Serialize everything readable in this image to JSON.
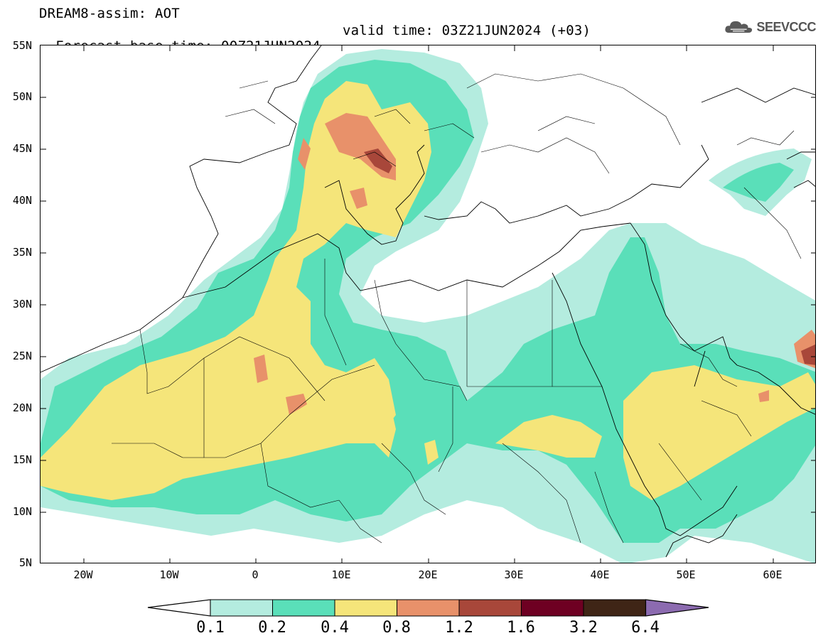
{
  "header": {
    "title_line1": "DREAM8-assim: AOT",
    "base_time": "Forecast base time: 00Z21JUN2024",
    "valid_time": "valid time: 03Z21JUN2024 (+03)"
  },
  "logo": {
    "text": "SEEVCCC",
    "icon": "cloud-icon"
  },
  "map": {
    "lon_range": [
      -25,
      65
    ],
    "lat_range": [
      5,
      55
    ],
    "lat_ticks": [
      "55N",
      "50N",
      "45N",
      "40N",
      "35N",
      "30N",
      "25N",
      "20N",
      "15N",
      "10N",
      "5N"
    ],
    "lon_ticks": [
      "20W",
      "10W",
      "0",
      "10E",
      "20E",
      "30E",
      "40E",
      "50E",
      "60E"
    ]
  },
  "legend": {
    "levels": [
      "0.1",
      "0.2",
      "0.4",
      "0.8",
      "1.2",
      "1.6",
      "3.2",
      "6.4"
    ],
    "colors": [
      "#b4ecdf",
      "#5adfb9",
      "#f5e57a",
      "#e8916a",
      "#a8473a",
      "#6e0022",
      "#3f2516",
      "#8c6bb0"
    ]
  }
}
